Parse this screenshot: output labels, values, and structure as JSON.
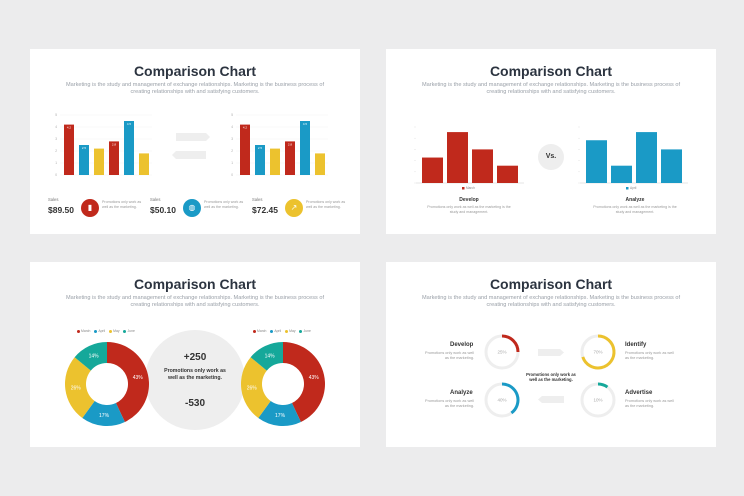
{
  "colors": {
    "red": "#c0291c",
    "blue": "#1a9ac6",
    "yellow": "#ecc22e",
    "teal": "#15a89a",
    "bg": "#ececed",
    "title": "#2c3440"
  },
  "slides": [
    {
      "title": "Comparison Chart",
      "subtitle": "Marketing is the study and management of exchange relationships. Marketing is the business process of creating relationships with and satisfying customers.",
      "left_chart": {
        "values": [
          4.2,
          2.5,
          2.2,
          2.8,
          4.5,
          1.8
        ],
        "labels": [
          "4.2",
          "2.5",
          "",
          "2.8",
          "4.5",
          ""
        ]
      },
      "right_chart": {
        "values": [
          4.2,
          2.5,
          2.2,
          2.8,
          4.5,
          1.8
        ],
        "labels": [
          "4.2",
          "2.5",
          "",
          "2.8",
          "4.5",
          ""
        ]
      },
      "y_ticks": [
        "5",
        "4",
        "3",
        "2",
        "1",
        "0"
      ],
      "sales": [
        {
          "label": "Sales",
          "value": "$89.50",
          "caption": "Promotions only work as well as the marketing.",
          "icon": "bar-chart-icon"
        },
        {
          "label": "Sales",
          "value": "$50.10",
          "caption": "Promotions only work as well as the marketing.",
          "icon": "globe-icon"
        },
        {
          "label": "Sales",
          "value": "$72.45",
          "caption": "Promotions only work as well as the marketing.",
          "icon": "growth-icon"
        }
      ]
    },
    {
      "title": "Comparison Chart",
      "subtitle": "Marketing is the study and management of exchange relationships. Marketing is the business process of creating relationships with and satisfying customers.",
      "left_chart": {
        "values": [
          2.5,
          5,
          3.3,
          1.7
        ],
        "legend": "March",
        "heading": "Develop",
        "caption": "Promotions only work as well as the marketing is the study and management."
      },
      "right_chart": {
        "values": [
          4.2,
          1.7,
          5,
          3.3
        ],
        "legend": "April",
        "heading": "Analyze",
        "caption": "Promotions only work as well as the marketing is the study and management."
      },
      "vs": "Vs."
    },
    {
      "title": "Comparison Chart",
      "subtitle": "Marketing is the study and management of exchange relationships. Marketing is the business process of creating relationships with and satisfying customers.",
      "legend": [
        "March",
        "April",
        "May",
        "June"
      ],
      "donut": {
        "values": [
          43,
          17,
          26,
          14
        ],
        "labels": [
          "43%",
          "17%",
          "26%",
          "14%"
        ]
      },
      "center": {
        "top": "+250",
        "text": "Promotions only work as well as the marketing.",
        "bottom": "-530"
      }
    },
    {
      "title": "Comparison Chart",
      "subtitle": "Marketing is the study and management of exchange relationships. Marketing is the business process of creating relationships with and satisfying customers.",
      "center_note": "Promotions only work as well as the marketing.",
      "items": [
        {
          "heading": "Develop",
          "caption": "Promotions only work as well as the marketing.",
          "percent": 25,
          "label": "25%"
        },
        {
          "heading": "Identify",
          "caption": "Promotions only work as well as the marketing.",
          "percent": 70,
          "label": "70%"
        },
        {
          "heading": "Analyze",
          "caption": "Promotions only work as well as the marketing.",
          "percent": 40,
          "label": "40%"
        },
        {
          "heading": "Advertise",
          "caption": "Promotions only work as well as the marketing.",
          "percent": 10,
          "label": "10%"
        }
      ]
    }
  ]
}
